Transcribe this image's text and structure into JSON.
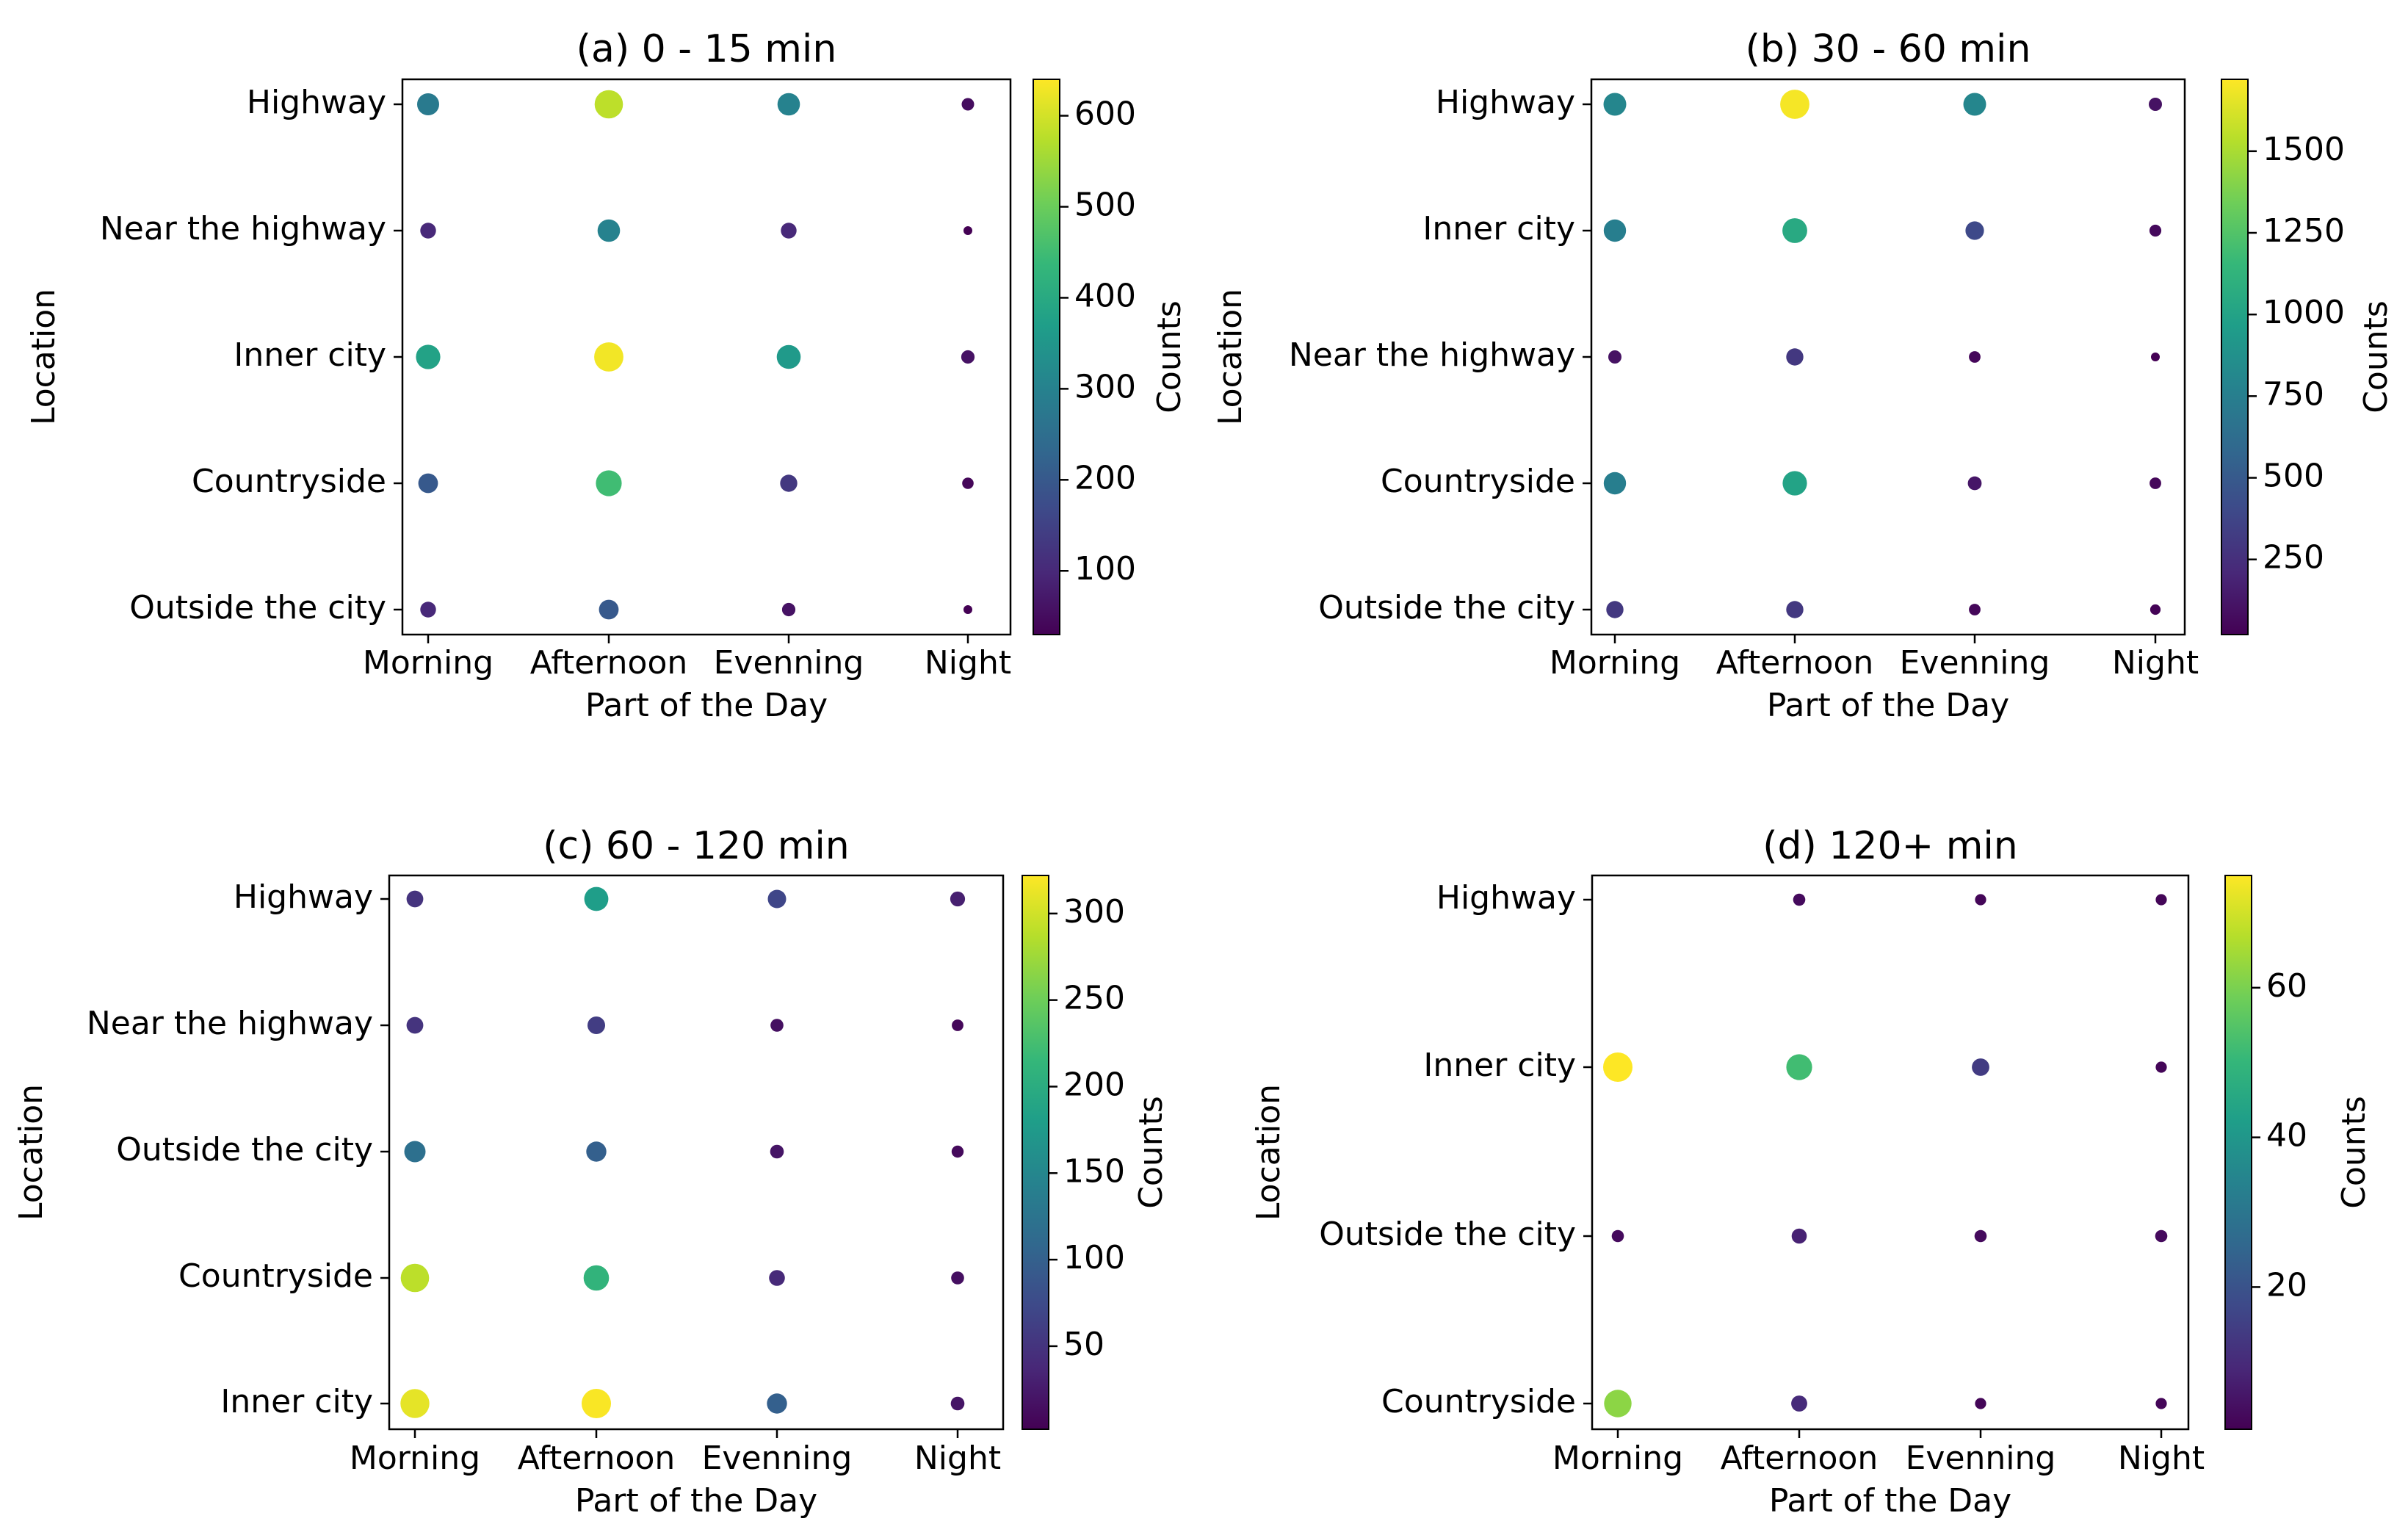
{
  "colormap": "viridis",
  "colormap_stops": [
    "#440154",
    "#482878",
    "#3e4989",
    "#31688e",
    "#26828e",
    "#1f9e89",
    "#35b779",
    "#6ece58",
    "#b5de2b",
    "#fde725"
  ],
  "chart_data": [
    {
      "type": "scatter",
      "title": "(a) 0 - 15 min",
      "xlabel": "Part of the Day",
      "ylabel": "Location",
      "x_categories": [
        "Morning",
        "Afternoon",
        "Evenning",
        "Night"
      ],
      "y_categories": [
        "Highway",
        "Near the highway",
        "Inner city",
        "Countryside",
        "Outside the city"
      ],
      "values": [
        [
          280,
          580,
          300,
          50
        ],
        [
          100,
          300,
          100,
          20
        ],
        [
          380,
          630,
          360,
          60
        ],
        [
          200,
          450,
          130,
          40
        ],
        [
          100,
          200,
          60,
          30
        ]
      ],
      "colorbar": {
        "label": "Counts",
        "min": 30,
        "max": 640,
        "ticks": [
          100,
          200,
          300,
          400,
          500,
          600
        ]
      }
    },
    {
      "type": "scatter",
      "title": "(b) 30 - 60 min",
      "xlabel": "Part of the Day",
      "ylabel": "Location",
      "x_categories": [
        "Morning",
        "Afternoon",
        "Evenning",
        "Night"
      ],
      "y_categories": [
        "Highway",
        "Inner city",
        "Near the highway",
        "Countryside",
        "Outside the city"
      ],
      "values": [
        [
          800,
          1700,
          800,
          100
        ],
        [
          750,
          1050,
          400,
          60
        ],
        [
          100,
          300,
          50,
          20
        ],
        [
          750,
          1000,
          120,
          50
        ],
        [
          300,
          300,
          50,
          30
        ]
      ],
      "colorbar": {
        "label": "Counts",
        "min": 20,
        "max": 1720,
        "ticks": [
          250,
          500,
          750,
          1000,
          1250,
          1500
        ]
      }
    },
    {
      "type": "scatter",
      "title": "(c) 60 - 120 min",
      "xlabel": "Part of the Day",
      "ylabel": "Location",
      "x_categories": [
        "Morning",
        "Afternoon",
        "Evenning",
        "Night"
      ],
      "y_categories": [
        "Highway",
        "Near the highway",
        "Outside the city",
        "Countryside",
        "Inner city"
      ],
      "values": [
        [
          50,
          180,
          70,
          30
        ],
        [
          50,
          60,
          15,
          8
        ],
        [
          120,
          100,
          20,
          10
        ],
        [
          290,
          210,
          40,
          15
        ],
        [
          310,
          320,
          100,
          20
        ]
      ],
      "colorbar": {
        "label": "Counts",
        "min": 2,
        "max": 322,
        "ticks": [
          50,
          100,
          150,
          200,
          250,
          300
        ]
      }
    },
    {
      "type": "scatter",
      "title": "(d) 120+ min",
      "xlabel": "Part of the Day",
      "ylabel": "Location",
      "x_categories": [
        "Morning",
        "Afternoon",
        "Evenning",
        "Night"
      ],
      "y_categories": [
        "Highway",
        "Inner city",
        "Outside the city",
        "Countryside"
      ],
      "values": [
        [
          null,
          3,
          2,
          2
        ],
        [
          75,
          52,
          14,
          2
        ],
        [
          3,
          8,
          3,
          3
        ],
        [
          62,
          10,
          2,
          2
        ]
      ],
      "colorbar": {
        "label": "Counts",
        "min": 1,
        "max": 75,
        "ticks": [
          20,
          40,
          60
        ]
      }
    }
  ]
}
